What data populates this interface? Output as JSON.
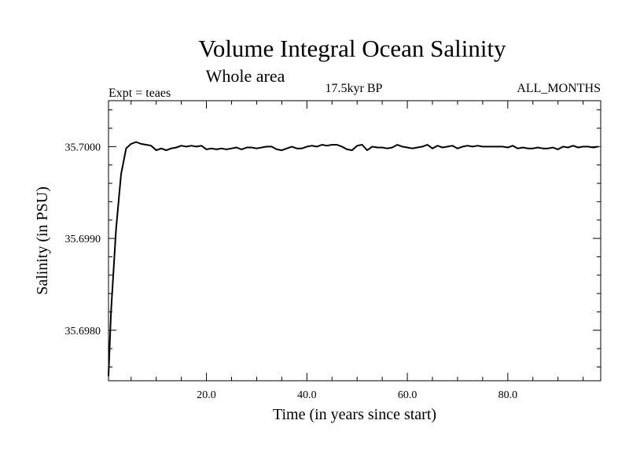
{
  "chart_data": {
    "type": "line",
    "title": "Volume Integral Ocean Salinity",
    "subtitle": "Whole area",
    "annotations": {
      "experiment": "Expt = teaes",
      "period": "17.5kyr BP",
      "months": "ALL_MONTHS"
    },
    "xlabel": "Time (in years since start)",
    "ylabel": "Salinity (in PSU)",
    "xlim": [
      0.5,
      98.5
    ],
    "ylim": [
      35.69745,
      35.7005
    ],
    "xticks": [
      {
        "value": 20,
        "label": "20.0"
      },
      {
        "value": 40,
        "label": "40.0"
      },
      {
        "value": 60,
        "label": "60.0"
      },
      {
        "value": 80,
        "label": "80.0"
      }
    ],
    "yticks": [
      {
        "value": 35.698,
        "label": "35.6980"
      },
      {
        "value": 35.699,
        "label": "35.6990"
      },
      {
        "value": 35.7,
        "label": "35.7000"
      }
    ],
    "series": [
      {
        "name": "Salinity",
        "x": [
          0.5,
          1,
          2,
          3,
          4,
          5,
          6,
          7,
          8,
          9,
          10,
          11,
          12,
          13,
          14,
          15,
          16,
          17,
          18,
          19,
          20,
          21,
          22,
          23,
          24,
          25,
          26,
          27,
          28,
          29,
          30,
          31,
          32,
          33,
          34,
          35,
          36,
          37,
          38,
          39,
          40,
          41,
          42,
          43,
          44,
          45,
          46,
          47,
          48,
          49,
          50,
          51,
          52,
          53,
          54,
          55,
          56,
          57,
          58,
          59,
          60,
          61,
          62,
          63,
          64,
          65,
          66,
          67,
          68,
          69,
          70,
          71,
          72,
          73,
          74,
          75,
          76,
          77,
          78,
          79,
          80,
          81,
          82,
          83,
          84,
          85,
          86,
          87,
          88,
          89,
          90,
          91,
          92,
          93,
          94,
          95,
          96,
          97,
          98
        ],
        "values": [
          35.6975,
          35.6982,
          35.6991,
          35.6997,
          35.69998,
          35.70003,
          35.70005,
          35.70003,
          35.70002,
          35.70001,
          35.69996,
          35.69998,
          35.69996,
          35.69998,
          35.69999,
          35.70001,
          35.7,
          35.70001,
          35.7,
          35.70001,
          35.69997,
          35.69998,
          35.69997,
          35.69998,
          35.69997,
          35.69998,
          35.69999,
          35.69997,
          35.69999,
          35.69999,
          35.69998,
          35.69999,
          35.7,
          35.7,
          35.69997,
          35.69996,
          35.69998,
          35.7,
          35.69998,
          35.69998,
          35.7,
          35.70001,
          35.7,
          35.70002,
          35.70001,
          35.70002,
          35.70002,
          35.7,
          35.69997,
          35.69996,
          35.70001,
          35.70002,
          35.69996,
          35.7,
          35.69999,
          35.69999,
          35.69998,
          35.69999,
          35.70002,
          35.7,
          35.69999,
          35.69998,
          35.69999,
          35.7,
          35.70002,
          35.69998,
          35.70001,
          35.69999,
          35.7,
          35.70001,
          35.69998,
          35.7,
          35.70001,
          35.7,
          35.70001,
          35.7,
          35.7,
          35.7,
          35.7,
          35.7,
          35.69999,
          35.70001,
          35.69998,
          35.69999,
          35.69998,
          35.69998,
          35.69999,
          35.69998,
          35.69998,
          35.69999,
          35.69997,
          35.7,
          35.69999,
          35.70001,
          35.69999,
          35.7,
          35.7,
          35.69999,
          35.7
        ]
      }
    ],
    "grid": false,
    "legend": "none"
  },
  "style": {
    "background": "#ffffff",
    "foreground": "#000000"
  }
}
